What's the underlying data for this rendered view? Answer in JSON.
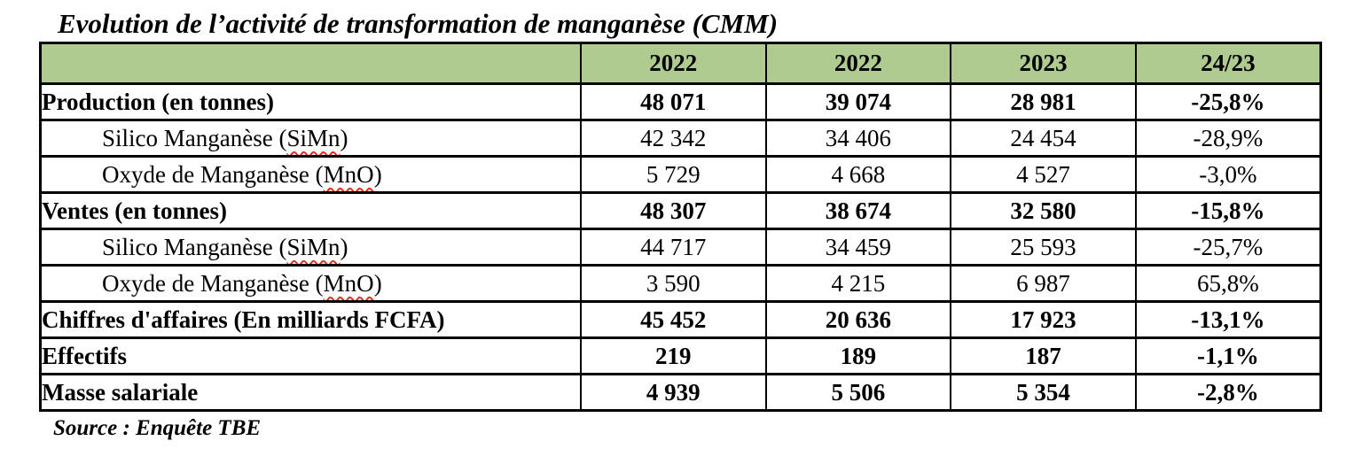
{
  "colors": {
    "header_bg": "#afcb90",
    "border": "#000000",
    "squiggle": "#e03020",
    "text": "#000000"
  },
  "title": "Evolution de l’activité de transformation de manganèse (CMM)",
  "source": "Source : Enquête TBE",
  "table": {
    "columns": [
      "",
      "2022",
      "2022",
      "2023",
      "24/23"
    ],
    "rows": [
      {
        "label_pre": "Production (en tonnes)",
        "label_mark": "",
        "label_post": "",
        "bold": true,
        "indent": false,
        "values": [
          "48 071",
          "39 074",
          "28 981",
          "-25,8%"
        ]
      },
      {
        "label_pre": "Silico Manganèse (",
        "label_mark": "SiMn",
        "label_post": ")",
        "bold": false,
        "indent": true,
        "values": [
          "42 342",
          "34 406",
          "24 454",
          "-28,9%"
        ]
      },
      {
        "label_pre": "Oxyde de Manganèse (",
        "label_mark": "MnO",
        "label_post": ")",
        "bold": false,
        "indent": true,
        "values": [
          "5 729",
          "4 668",
          "4 527",
          "-3,0%"
        ]
      },
      {
        "label_pre": "Ventes (en tonnes)",
        "label_mark": "",
        "label_post": "",
        "bold": true,
        "indent": false,
        "values": [
          "48 307",
          "38 674",
          "32 580",
          "-15,8%"
        ]
      },
      {
        "label_pre": "Silico Manganèse (",
        "label_mark": "SiMn",
        "label_post": ")",
        "bold": false,
        "indent": true,
        "values": [
          "44 717",
          "34 459",
          "25 593",
          "-25,7%"
        ]
      },
      {
        "label_pre": "Oxyde de Manganèse (",
        "label_mark": "MnO",
        "label_post": ")",
        "bold": false,
        "indent": true,
        "values": [
          "3 590",
          "4 215",
          "6 987",
          "65,8%"
        ]
      },
      {
        "label_pre": "Chiffres d'affaires (En milliards FCFA)",
        "label_mark": "",
        "label_post": "",
        "bold": true,
        "indent": false,
        "values": [
          "45 452",
          "20 636",
          "17 923",
          "-13,1%"
        ]
      },
      {
        "label_pre": "Effectifs",
        "label_mark": "",
        "label_post": "",
        "bold": true,
        "indent": false,
        "values": [
          "219",
          "189",
          "187",
          "-1,1%"
        ]
      },
      {
        "label_pre": "Masse salariale",
        "label_mark": "",
        "label_post": "",
        "bold": true,
        "indent": false,
        "values": [
          "4 939",
          "5 506",
          "5 354",
          "-2,8%"
        ]
      }
    ]
  }
}
